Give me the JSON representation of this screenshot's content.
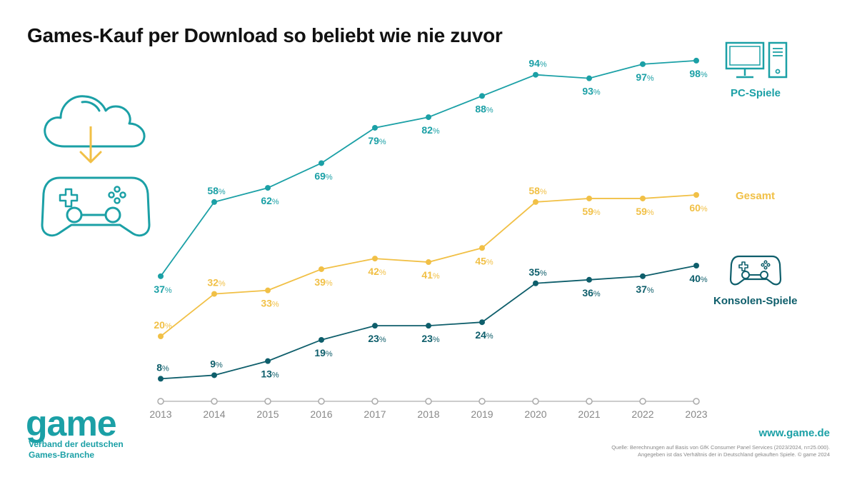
{
  "title": "Games-Kauf per Download so beliebt wie nie zuvor",
  "chart_data": {
    "type": "line",
    "title": "Games-Kauf per Download so beliebt wie nie zuvor",
    "categories": [
      "2013",
      "2014",
      "2015",
      "2016",
      "2017",
      "2018",
      "2019",
      "2020",
      "2021",
      "2022",
      "2023"
    ],
    "value_suffix": "%",
    "series": [
      {
        "name": "PC-Spiele",
        "color": "#1ba0a6",
        "values": [
          37,
          58,
          62,
          69,
          79,
          82,
          88,
          94,
          93,
          97,
          98
        ]
      },
      {
        "name": "Gesamt",
        "color": "#f1c046",
        "values": [
          20,
          32,
          33,
          39,
          42,
          41,
          45,
          58,
          59,
          59,
          60
        ]
      },
      {
        "name": "Konsolen-Spiele",
        "color": "#0e5e6b",
        "values": [
          8,
          9,
          13,
          19,
          23,
          23,
          24,
          35,
          36,
          37,
          40
        ]
      }
    ],
    "grid": false,
    "legend": "right"
  },
  "branding": {
    "logo": "game",
    "org_line1": "Verband der deutschen",
    "org_line2": "Games-Branche",
    "website": "www.game.de"
  },
  "source": {
    "line1": "Quelle: Berechnungen auf Basis von GfK Consumer Panel Services (2023/2024, n=25.000).",
    "line2": "Angegeben ist das Verhältnis der in Deutschland gekauften Spiele. © game 2024"
  },
  "icons": [
    "cloud-download-icon",
    "gamepad-icon",
    "computer-icon",
    "small-gamepad-icon"
  ]
}
